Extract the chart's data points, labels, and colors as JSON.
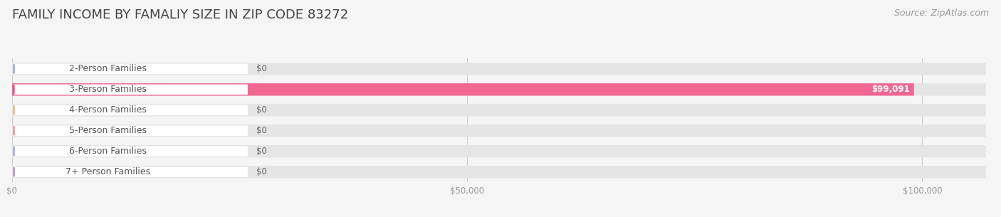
{
  "title": "FAMILY INCOME BY FAMALIY SIZE IN ZIP CODE 83272",
  "source": "Source: ZipAtlas.com",
  "categories": [
    "2-Person Families",
    "3-Person Families",
    "4-Person Families",
    "5-Person Families",
    "6-Person Families",
    "7+ Person Families"
  ],
  "values": [
    0,
    99091,
    0,
    0,
    0,
    0
  ],
  "bar_colors": [
    "#aab4df",
    "#f06892",
    "#f5c08a",
    "#f0a0a0",
    "#aab4df",
    "#c4a8d8"
  ],
  "dot_colors": [
    "#8090cc",
    "#ee4488",
    "#e8a050",
    "#e07070",
    "#8090cc",
    "#9070b8"
  ],
  "value_labels": [
    "$0",
    "$99,091",
    "$0",
    "$0",
    "$0",
    "$0"
  ],
  "xlim": [
    0,
    107000
  ],
  "xticks": [
    0,
    50000,
    100000
  ],
  "xticklabels": [
    "$0",
    "$50,000",
    "$100,000"
  ],
  "background_color": "#f5f5f5",
  "bar_bg_color": "#e5e5e5",
  "title_fontsize": 13,
  "source_fontsize": 9,
  "label_fontsize": 9,
  "value_fontsize": 8.5
}
